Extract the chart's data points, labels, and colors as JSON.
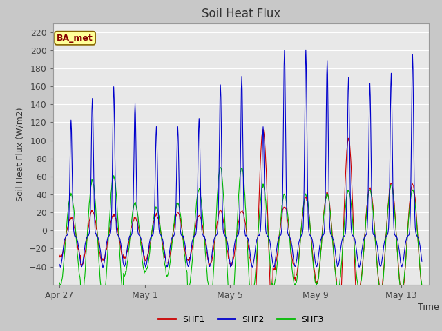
{
  "title": "Soil Heat Flux",
  "ylabel": "Soil Heat Flux (W/m2)",
  "xlabel": "Time",
  "ylim": [
    -60,
    230
  ],
  "yticks": [
    -40,
    -20,
    0,
    20,
    40,
    60,
    80,
    100,
    120,
    140,
    160,
    180,
    200,
    220
  ],
  "xtick_positions": [
    0,
    4,
    8,
    12,
    16
  ],
  "xtick_labels": [
    "Apr 27",
    "May 1",
    "May 5",
    "May 9",
    "May 13"
  ],
  "colors": {
    "SHF1": "#cc0000",
    "SHF2": "#0000cc",
    "SHF3": "#00bb00"
  },
  "legend_label": "BA_met",
  "fig_bg_color": "#c8c8c8",
  "plot_bg_color": "#e8e8e8",
  "grid_color": "#ffffff",
  "annotation_bg": "#ffff99",
  "annotation_border": "#886600",
  "annotation_text_color": "#880000"
}
